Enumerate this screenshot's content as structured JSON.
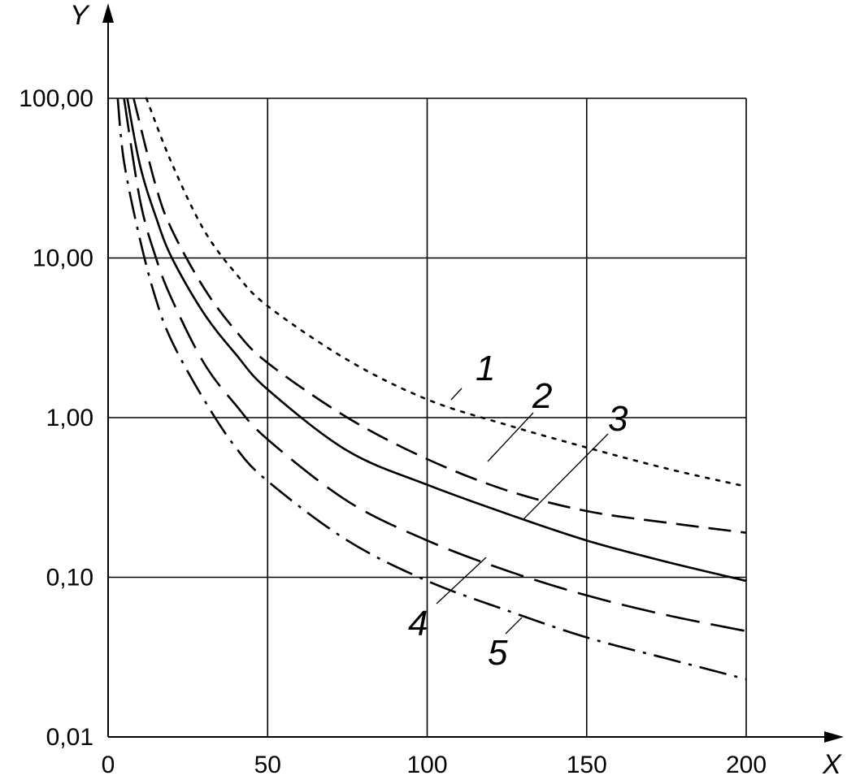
{
  "chart_data": {
    "type": "line",
    "title": "",
    "xlabel": "X",
    "ylabel": "Y",
    "xlim": [
      0,
      200
    ],
    "ylim": [
      0.01,
      100
    ],
    "y_scale": "log",
    "grid": true,
    "x_ticks": [
      0,
      50,
      100,
      150,
      200
    ],
    "x_tick_labels": [
      "0",
      "50",
      "100",
      "150",
      "200"
    ],
    "y_ticks": [
      0.01,
      0.1,
      1,
      10,
      100
    ],
    "y_tick_labels": [
      "0,01",
      "0,10",
      "1,00",
      "10,00",
      "100,00"
    ],
    "series": [
      {
        "label": "1",
        "style": "dotted",
        "x": [
          12,
          20,
          30,
          40,
          50,
          75,
          100,
          125,
          150,
          175,
          200
        ],
        "y": [
          100,
          39,
          15,
          8,
          5,
          2.3,
          1.3,
          0.9,
          0.65,
          0.48,
          0.37
        ]
      },
      {
        "label": "2",
        "style": "dashed",
        "x": [
          8,
          15,
          20,
          30,
          40,
          50,
          75,
          100,
          125,
          150,
          175,
          200
        ],
        "y": [
          100,
          28,
          15,
          6.5,
          3.5,
          2.2,
          1.0,
          0.55,
          0.35,
          0.26,
          0.22,
          0.19
        ]
      },
      {
        "label": "3",
        "style": "solid",
        "x": [
          6,
          10,
          15,
          20,
          30,
          40,
          50,
          75,
          100,
          125,
          150,
          175,
          200
        ],
        "y": [
          100,
          38,
          18,
          10,
          4.5,
          2.5,
          1.5,
          0.62,
          0.38,
          0.25,
          0.17,
          0.125,
          0.095
        ]
      },
      {
        "label": "4",
        "style": "long-dash",
        "x": [
          5,
          10,
          15,
          20,
          30,
          40,
          50,
          75,
          100,
          125,
          150,
          175,
          200
        ],
        "y": [
          100,
          23,
          10,
          5.5,
          2.2,
          1.2,
          0.73,
          0.3,
          0.17,
          0.11,
          0.077,
          0.058,
          0.046
        ]
      },
      {
        "label": "5",
        "style": "dash-dot",
        "x": [
          3,
          5,
          10,
          15,
          20,
          30,
          40,
          50,
          75,
          100,
          125,
          150,
          175,
          200
        ],
        "y": [
          100,
          40,
          13,
          5.5,
          3.0,
          1.3,
          0.65,
          0.4,
          0.17,
          0.095,
          0.062,
          0.042,
          0.031,
          0.023
        ]
      }
    ],
    "annotations": [
      {
        "text": "1",
        "target_series": "1"
      },
      {
        "text": "2",
        "target_series": "2"
      },
      {
        "text": "3",
        "target_series": "3"
      },
      {
        "text": "4",
        "target_series": "4"
      },
      {
        "text": "5",
        "target_series": "5"
      }
    ]
  }
}
